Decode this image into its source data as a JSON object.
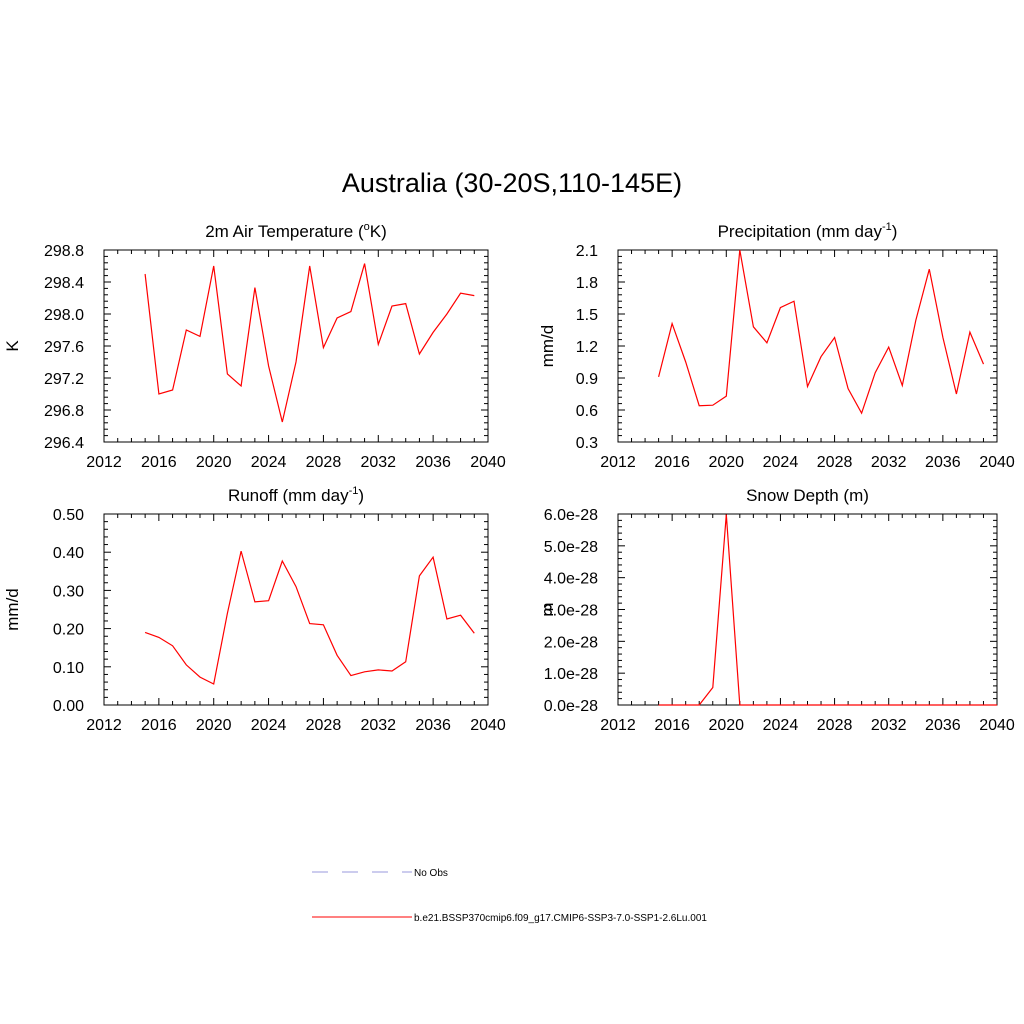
{
  "figure_title": "Australia (30-20S,110-145E)",
  "colors": {
    "series": "#ff0000",
    "no_obs": "#9999dd",
    "axis": "#000000"
  },
  "legend": [
    {
      "label": "No Obs",
      "style": "dashed",
      "color": "#9999dd"
    },
    {
      "label": "b.e21.BSSP370cmip6.f09_g17.CMIP6-SSP3-7.0-SSP1-2.6Lu.001",
      "style": "solid",
      "color": "#ff0000"
    }
  ],
  "chart_data": [
    {
      "type": "line",
      "title": "2m Air Temperature (",
      "title_sup": "o",
      "title_after": "K)",
      "ylabel": "K",
      "xlim": [
        2012,
        2040
      ],
      "ylim": [
        296.4,
        298.8
      ],
      "xticks": [
        2012,
        2016,
        2020,
        2024,
        2028,
        2032,
        2036,
        2040
      ],
      "xtick_labels": [
        "2012",
        "2016",
        "2020",
        "2024",
        "2028",
        "2032",
        "2036",
        "2040"
      ],
      "yticks": [
        296.4,
        296.8,
        297.2,
        297.6,
        298.0,
        298.4,
        298.8
      ],
      "ytick_labels": [
        "296.4",
        "296.8",
        "297.2",
        "297.6",
        "298.0",
        "298.4",
        "298.8"
      ],
      "series": [
        {
          "x": [
            2015,
            2016,
            2017,
            2018,
            2019,
            2020,
            2021,
            2022,
            2023,
            2024,
            2025,
            2026,
            2027,
            2028,
            2029,
            2030,
            2031,
            2032,
            2033,
            2034,
            2035,
            2036,
            2037,
            2038,
            2039
          ],
          "values": [
            298.5,
            297.0,
            297.05,
            297.8,
            297.72,
            298.6,
            297.25,
            297.1,
            298.33,
            297.35,
            296.65,
            297.4,
            298.6,
            297.58,
            297.95,
            298.03,
            298.63,
            297.62,
            298.1,
            298.13,
            297.5,
            297.77,
            298.0,
            298.26,
            298.23
          ]
        }
      ]
    },
    {
      "type": "line",
      "title": "Precipitation (mm day",
      "title_sup": "-1",
      "title_after": ")",
      "ylabel": "mm/d",
      "xlim": [
        2012,
        2040
      ],
      "ylim": [
        0.3,
        2.1
      ],
      "xticks": [
        2012,
        2016,
        2020,
        2024,
        2028,
        2032,
        2036,
        2040
      ],
      "xtick_labels": [
        "2012",
        "2016",
        "2020",
        "2024",
        "2028",
        "2032",
        "2036",
        "2040"
      ],
      "yticks": [
        0.3,
        0.6,
        0.9,
        1.2,
        1.5,
        1.8,
        2.1
      ],
      "ytick_labels": [
        "0.3",
        "0.6",
        "0.9",
        "1.2",
        "1.5",
        "1.8",
        "2.1"
      ],
      "series": [
        {
          "x": [
            2015,
            2016,
            2017,
            2018,
            2019,
            2020,
            2021,
            2022,
            2023,
            2024,
            2025,
            2026,
            2027,
            2028,
            2029,
            2030,
            2031,
            2032,
            2033,
            2034,
            2035,
            2036,
            2037,
            2038,
            2039
          ],
          "values": [
            0.91,
            1.41,
            1.05,
            0.64,
            0.645,
            0.73,
            2.1,
            1.38,
            1.23,
            1.56,
            1.62,
            0.82,
            1.1,
            1.28,
            0.8,
            0.57,
            0.95,
            1.19,
            0.83,
            1.44,
            1.92,
            1.28,
            0.75,
            1.33,
            1.03
          ]
        }
      ]
    },
    {
      "type": "line",
      "title": "Runoff (mm day",
      "title_sup": "-1",
      "title_after": ")",
      "ylabel": "mm/d",
      "xlim": [
        2012,
        2040
      ],
      "ylim": [
        0.0,
        0.5
      ],
      "xticks": [
        2012,
        2016,
        2020,
        2024,
        2028,
        2032,
        2036,
        2040
      ],
      "xtick_labels": [
        "2012",
        "2016",
        "2020",
        "2024",
        "2028",
        "2032",
        "2036",
        "2040"
      ],
      "yticks": [
        0.0,
        0.1,
        0.2,
        0.3,
        0.4,
        0.5
      ],
      "ytick_labels": [
        "0.00",
        "0.10",
        "0.20",
        "0.30",
        "0.40",
        "0.50"
      ],
      "series": [
        {
          "x": [
            2015,
            2016,
            2017,
            2018,
            2019,
            2020,
            2021,
            2022,
            2023,
            2024,
            2025,
            2026,
            2027,
            2028,
            2029,
            2030,
            2031,
            2032,
            2033,
            2034,
            2035,
            2036,
            2037,
            2038,
            2039
          ],
          "values": [
            0.19,
            0.177,
            0.155,
            0.105,
            0.073,
            0.055,
            0.24,
            0.403,
            0.27,
            0.273,
            0.377,
            0.31,
            0.213,
            0.21,
            0.13,
            0.077,
            0.087,
            0.092,
            0.089,
            0.113,
            0.338,
            0.387,
            0.225,
            0.235,
            0.188
          ]
        }
      ]
    },
    {
      "type": "line",
      "title": "Snow Depth (m)",
      "title_sup": "",
      "title_after": "",
      "ylabel": "m",
      "xlim": [
        2012,
        2040
      ],
      "ylim": [
        0,
        6e-28
      ],
      "xticks": [
        2012,
        2016,
        2020,
        2024,
        2028,
        2032,
        2036,
        2040
      ],
      "xtick_labels": [
        "2012",
        "2016",
        "2020",
        "2024",
        "2028",
        "2032",
        "2036",
        "2040"
      ],
      "yticks": [
        0,
        1e-28,
        2e-28,
        3e-28,
        4e-28,
        5e-28,
        6e-28
      ],
      "ytick_labels": [
        "0.0e-28",
        "1.0e-28",
        "2.0e-28",
        "3.0e-28",
        "4.0e-28",
        "5.0e-28",
        "6.0e-28"
      ],
      "series": [
        {
          "x": [
            2015,
            2016,
            2017,
            2018,
            2019,
            2020,
            2021,
            2022,
            2023,
            2024,
            2025,
            2026,
            2027,
            2028,
            2029,
            2030,
            2031,
            2032,
            2033,
            2034,
            2035,
            2036,
            2037,
            2038,
            2039,
            2040
          ],
          "values": [
            0,
            0,
            0,
            0,
            5.5e-29,
            5.98e-28,
            0,
            0,
            0,
            0,
            0,
            0,
            0,
            0,
            0,
            0,
            0,
            0,
            0,
            0,
            0,
            0,
            0,
            0,
            0,
            0
          ]
        }
      ]
    }
  ]
}
